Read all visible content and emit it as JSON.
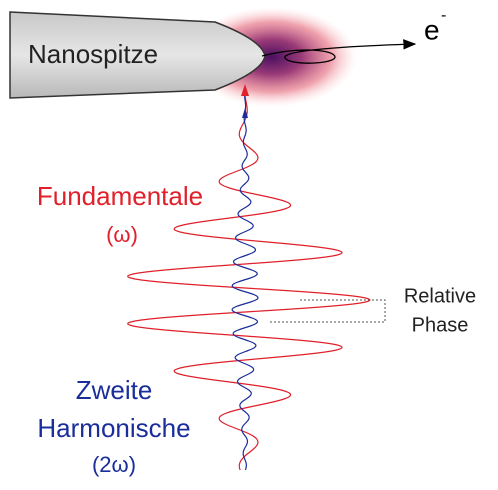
{
  "tip_label": "Nanospitze",
  "electron": {
    "symbol": "e",
    "charge": "-"
  },
  "fundamental": {
    "name": "Fundamentale",
    "symbol": "(ω)"
  },
  "phase_label": {
    "line1": "Relative",
    "line2": "Phase"
  },
  "second_harmonic": {
    "line1": "Zweite",
    "line2": "Harmonische",
    "symbol": "(2ω)"
  }
}
